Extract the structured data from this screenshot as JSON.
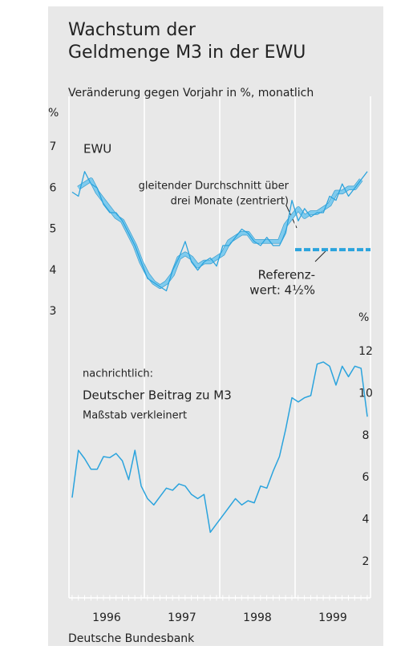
{
  "chart_data": {
    "type": "line",
    "title": [
      "Wachstum der",
      "Geldmenge M3 in der EWU"
    ],
    "subtitle": "Veränderung gegen Vorjahr in %, monatlich",
    "y_unit": "%",
    "y2_unit": "%",
    "source": "Deutsche Bundesbank",
    "x": [
      1996.042,
      1996.125,
      1996.208,
      1996.292,
      1996.375,
      1996.458,
      1996.542,
      1996.625,
      1996.708,
      1996.792,
      1996.875,
      1996.958,
      1997.042,
      1997.125,
      1997.208,
      1997.292,
      1997.375,
      1997.458,
      1997.542,
      1997.625,
      1997.708,
      1997.792,
      1997.875,
      1997.958,
      1998.042,
      1998.125,
      1998.208,
      1998.292,
      1998.375,
      1998.458,
      1998.542,
      1998.625,
      1998.708,
      1998.792,
      1998.875,
      1998.958,
      1999.042,
      1999.125,
      1999.208,
      1999.292,
      1999.375,
      1999.458,
      1999.542,
      1999.625,
      1999.708,
      1999.792,
      1999.875,
      1999.958
    ],
    "xlim": [
      1996,
      2000
    ],
    "xticks": [
      {
        "value": 1996.5,
        "label": "1996"
      },
      {
        "value": 1997.5,
        "label": "1997"
      },
      {
        "value": 1998.5,
        "label": "1998"
      },
      {
        "value": 1999.5,
        "label": "1999"
      }
    ],
    "xgrid": [
      1996,
      1997,
      1998,
      1999,
      2000
    ],
    "ylim": [
      3,
      7
    ],
    "yticks": [
      3,
      4,
      5,
      6,
      7
    ],
    "y2lim": [
      2,
      12
    ],
    "y2ticks": [
      2,
      4,
      6,
      8,
      10,
      12
    ],
    "series": [
      {
        "name": "EWU",
        "color": "#2aa3dd",
        "width": 1.3,
        "values": [
          5.9,
          5.8,
          6.4,
          6.1,
          6.0,
          5.6,
          5.4,
          5.4,
          5.2,
          4.9,
          4.6,
          4.2,
          3.8,
          3.7,
          3.6,
          3.5,
          4.0,
          4.3,
          4.7,
          4.2,
          4.0,
          4.2,
          4.3,
          4.1,
          4.6,
          4.6,
          4.8,
          5.0,
          4.9,
          4.7,
          4.6,
          4.8,
          4.6,
          4.6,
          4.9,
          5.7,
          5.2,
          5.5,
          5.3,
          5.4,
          5.4,
          5.8,
          5.7,
          6.1,
          5.8,
          6.0,
          6.2,
          6.4
        ]
      },
      {
        "label_lines": [
          "gleitender Durchschnitt über",
          "drei Monate (zentriert)"
        ],
        "color": "#7fcbee",
        "width": 4,
        "values": [
          null,
          6.0,
          6.1,
          6.2,
          5.9,
          5.7,
          5.5,
          5.3,
          5.2,
          4.9,
          4.6,
          4.2,
          3.9,
          3.7,
          3.6,
          3.7,
          3.9,
          4.3,
          4.4,
          4.3,
          4.1,
          4.2,
          4.2,
          4.3,
          4.4,
          4.7,
          4.8,
          4.9,
          4.9,
          4.7,
          4.7,
          4.7,
          4.7,
          4.7,
          5.1,
          5.3,
          5.5,
          5.3,
          5.4,
          5.4,
          5.5,
          5.6,
          5.9,
          5.9,
          6.0,
          6.0,
          6.2,
          null
        ]
      },
      {
        "label_lines": [
          "nachrichtlich:",
          "Deutscher Beitrag zu M3",
          "Maßstab verkleinert"
        ],
        "color": "#2aa3dd",
        "width": 1.5,
        "axis": "y2",
        "values": [
          5.05,
          7.3,
          6.9,
          6.4,
          6.4,
          7.0,
          6.95,
          7.15,
          6.8,
          5.9,
          7.3,
          5.6,
          5.0,
          4.7,
          5.1,
          5.5,
          5.4,
          5.7,
          5.6,
          5.2,
          5.0,
          5.2,
          3.4,
          3.8,
          4.2,
          4.6,
          5.0,
          4.7,
          4.9,
          4.8,
          5.6,
          5.5,
          6.3,
          7.0,
          8.3,
          9.8,
          9.6,
          9.8,
          9.9,
          11.4,
          11.5,
          11.3,
          10.4,
          11.3,
          10.8,
          11.3,
          11.2,
          8.9
        ]
      }
    ],
    "reference": {
      "value": 4.5,
      "from": 1999,
      "to": 2000,
      "color": "#2aa3dd",
      "style": "dashed",
      "label_lines": [
        "Referenz-",
        "wert: 4½%"
      ]
    },
    "grid": true
  }
}
